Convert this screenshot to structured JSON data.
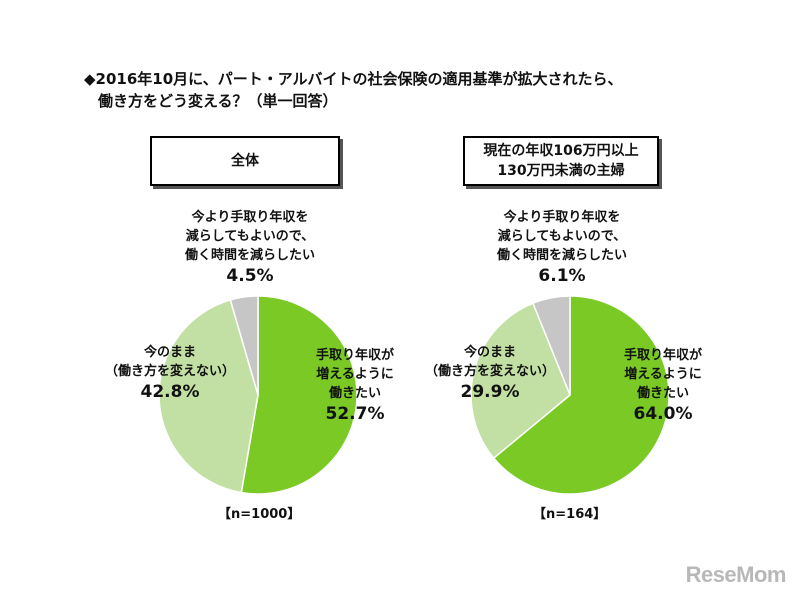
{
  "title": {
    "line1": "◆2016年10月に、パート・アルバイトの社会保険の適用基準が拡大されたら、",
    "line2": "働き方をどう変える？（単一回答）"
  },
  "logo": "ReseMom",
  "colors": {
    "green": "#7ac925",
    "lightgreen": "#c3e0a4",
    "gray": "#c6c6c6"
  },
  "chart_data": [
    {
      "type": "pie",
      "title": "全体",
      "n_label": "【n=1000】",
      "slices": [
        {
          "label": "手取り年収が増えるように働きたい",
          "label_lines": [
            "手取り年収が",
            "増えるように",
            "働きたい"
          ],
          "value": 52.7,
          "value_label": "52.7%",
          "color": "#7ac925"
        },
        {
          "label": "今のまま（働き方を変えない）",
          "label_lines": [
            "今のまま",
            "（働き方を変えない）"
          ],
          "value": 42.8,
          "value_label": "42.8%",
          "color": "#c3e0a4"
        },
        {
          "label": "今より手取り年収を減らしてもよいので、働く時間を減らしたい",
          "label_lines": [
            "今より手取り年収を",
            "減らしてもよいので、",
            "働く時間を減らしたい"
          ],
          "value": 4.5,
          "value_label": "4.5%",
          "color": "#c6c6c6"
        }
      ]
    },
    {
      "type": "pie",
      "title_lines": [
        "現在の年収106万円以上",
        "130万円未満の主婦"
      ],
      "n_label": "【n=164】",
      "slices": [
        {
          "label": "手取り年収が増えるように働きたい",
          "label_lines": [
            "手取り年収が",
            "増えるように",
            "働きたい"
          ],
          "value": 64.0,
          "value_label": "64.0%",
          "color": "#7ac925"
        },
        {
          "label": "今のまま（働き方を変えない）",
          "label_lines": [
            "今のまま",
            "（働き方を変えない）"
          ],
          "value": 29.9,
          "value_label": "29.9%",
          "color": "#c3e0a4"
        },
        {
          "label": "今より手取り年収を減らしてもよいので、働く時間を減らしたい",
          "label_lines": [
            "今より手取り年収を",
            "減らしてもよいので、",
            "働く時間を減らしたい"
          ],
          "value": 6.1,
          "value_label": "6.1%",
          "color": "#c6c6c6"
        }
      ]
    }
  ]
}
